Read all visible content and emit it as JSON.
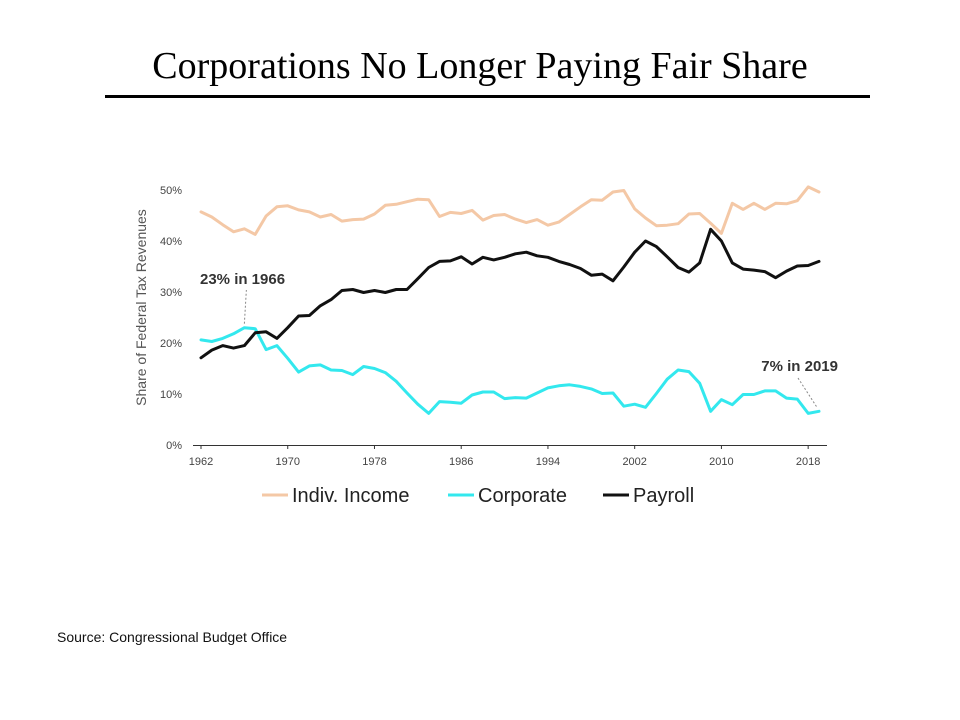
{
  "slide": {
    "title": "Corporations No Longer Paying Fair Share",
    "source": "Source: Congressional Budget Office"
  },
  "colors": {
    "indiv": "#f4c8a6",
    "corporate": "#33e8ee",
    "payroll": "#111111",
    "axis": "#333333",
    "annotation_pointer": "#888888"
  },
  "chart_data": {
    "type": "line",
    "title": "",
    "xlabel": "",
    "ylabel": "Share of Federal Tax Revenues",
    "xlim": [
      1962,
      2019
    ],
    "ylim": [
      0,
      50
    ],
    "x_ticks": [
      1962,
      1970,
      1978,
      1986,
      1994,
      2002,
      2010,
      2018
    ],
    "y_ticks": [
      0,
      10,
      20,
      30,
      40,
      50
    ],
    "y_tick_labels": [
      "0%",
      "10%",
      "20%",
      "30%",
      "40%",
      "50%"
    ],
    "grid": false,
    "legend_position": "bottom",
    "x": [
      1962,
      1963,
      1964,
      1965,
      1966,
      1967,
      1968,
      1969,
      1970,
      1971,
      1972,
      1973,
      1974,
      1975,
      1976,
      1977,
      1978,
      1979,
      1980,
      1981,
      1982,
      1983,
      1984,
      1985,
      1986,
      1987,
      1988,
      1989,
      1990,
      1991,
      1992,
      1993,
      1994,
      1995,
      1996,
      1997,
      1998,
      1999,
      2000,
      2001,
      2002,
      2003,
      2004,
      2005,
      2006,
      2007,
      2008,
      2009,
      2010,
      2011,
      2012,
      2013,
      2014,
      2015,
      2016,
      2017,
      2018,
      2019
    ],
    "series": [
      {
        "name": "Indiv. Income",
        "color_key": "indiv",
        "values": [
          45.7,
          44.7,
          43.2,
          41.8,
          42.4,
          41.3,
          44.9,
          46.7,
          46.9,
          46.1,
          45.7,
          44.7,
          45.2,
          43.9,
          44.2,
          44.3,
          45.3,
          47.0,
          47.2,
          47.7,
          48.2,
          48.1,
          44.8,
          45.6,
          45.4,
          46.0,
          44.1,
          45.0,
          45.2,
          44.3,
          43.6,
          44.2,
          43.1,
          43.7,
          45.2,
          46.7,
          48.1,
          48.0,
          49.6,
          49.9,
          46.3,
          44.5,
          43.0,
          43.1,
          43.4,
          45.3,
          45.4,
          43.5,
          41.5,
          47.4,
          46.2,
          47.4,
          46.2,
          47.4,
          47.3,
          47.9,
          50.6,
          49.6
        ]
      },
      {
        "name": "Corporate",
        "color_key": "corporate",
        "values": [
          20.6,
          20.3,
          20.9,
          21.8,
          23.0,
          22.8,
          18.7,
          19.5,
          17.0,
          14.3,
          15.5,
          15.7,
          14.7,
          14.6,
          13.8,
          15.4,
          15.0,
          14.2,
          12.5,
          10.2,
          8.0,
          6.2,
          8.5,
          8.4,
          8.2,
          9.8,
          10.4,
          10.4,
          9.1,
          9.3,
          9.2,
          10.2,
          11.2,
          11.6,
          11.8,
          11.5,
          11.0,
          10.1,
          10.2,
          7.6,
          8.0,
          7.4,
          10.1,
          12.9,
          14.7,
          14.4,
          12.1,
          6.6,
          8.9,
          7.9,
          9.9,
          9.9,
          10.6,
          10.6,
          9.2,
          9.0,
          6.2,
          6.6
        ]
      },
      {
        "name": "Payroll",
        "color_key": "payroll",
        "values": [
          17.1,
          18.6,
          19.5,
          19.0,
          19.5,
          22.0,
          22.2,
          20.9,
          23.0,
          25.3,
          25.4,
          27.3,
          28.5,
          30.3,
          30.5,
          29.9,
          30.3,
          29.9,
          30.5,
          30.5,
          32.6,
          34.8,
          36.0,
          36.1,
          36.9,
          35.5,
          36.8,
          36.3,
          36.8,
          37.5,
          37.8,
          37.1,
          36.8,
          36.0,
          35.4,
          34.6,
          33.3,
          33.5,
          32.2,
          34.9,
          37.8,
          40.0,
          38.9,
          36.9,
          34.8,
          33.9,
          35.7,
          42.3,
          40.0,
          35.7,
          34.5,
          34.3,
          34.0,
          32.8,
          34.1,
          35.1,
          35.2,
          36.0
        ]
      }
    ],
    "annotations": [
      {
        "text": "23% in 1966",
        "x": 1966,
        "y": 23.0,
        "label_anchor": "upper-left"
      },
      {
        "text": "7% in 2019",
        "x": 2019,
        "y": 6.6,
        "label_anchor": "upper-right"
      }
    ]
  }
}
